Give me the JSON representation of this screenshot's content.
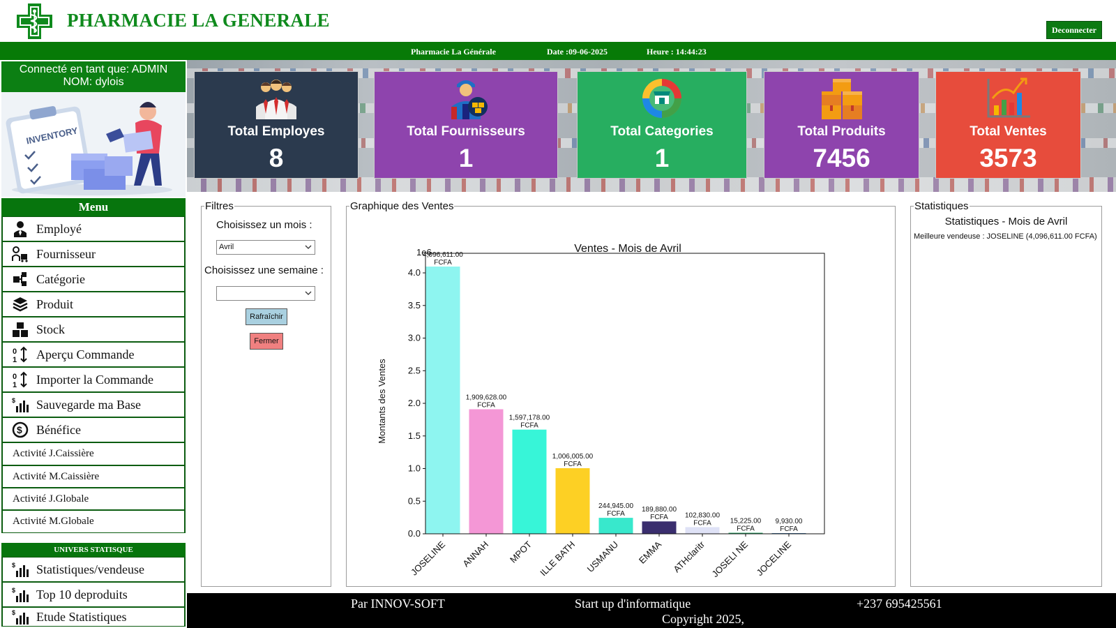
{
  "header": {
    "title": "PHARMACIE LA GENERALE",
    "logout_label": "Deconnecter"
  },
  "info_bar": {
    "pharmacy": "Pharmacie La Générale",
    "date": "Date :09-06-2025",
    "time": "Heure : 14:44:23"
  },
  "user": {
    "line1": "Connecté en tant que: ADMIN",
    "line2": "NOM:  dylois",
    "illustration_text": "INVENTORY"
  },
  "menu": {
    "title": "Menu",
    "items": [
      {
        "label": "Employé",
        "icon": "employee-icon"
      },
      {
        "label": "Fournisseur",
        "icon": "supplier-icon"
      },
      {
        "label": "Catégorie",
        "icon": "category-icon"
      },
      {
        "label": "Produit",
        "icon": "product-icon"
      },
      {
        "label": "Stock",
        "icon": "stock-icon"
      },
      {
        "label": "Aperçu Commande",
        "icon": "sort-icon"
      },
      {
        "label": "Importer la Commande",
        "icon": "sort-icon"
      },
      {
        "label": "Sauvegarde ma Base",
        "icon": "chart-dollar-icon"
      },
      {
        "label": "Bénéfice",
        "icon": "money-icon"
      }
    ],
    "activities": [
      "Activité J.Caissière",
      "Activité M.Caissière",
      "Activité J.Globale",
      "Activité M.Globale"
    ],
    "univers_title": "UNIVERS STATISQUE",
    "stat_items": [
      {
        "label": "Statistiques/vendeuse",
        "icon": "chart-dollar-icon"
      },
      {
        "label": "Top 10 deproduits",
        "icon": "chart-dollar-icon"
      },
      {
        "label": "Etude Statistiques",
        "icon": "chart-dollar-icon"
      }
    ]
  },
  "cards": [
    {
      "title": "Total Employes",
      "value": "8",
      "color": "#2b3a4e",
      "icon": "employees-icon"
    },
    {
      "title": "Total Fournisseurs",
      "value": "1",
      "color": "#8e44ad",
      "icon": "delivery-man-icon"
    },
    {
      "title": "Total Categories",
      "value": "1",
      "color": "#27ae60",
      "icon": "store-categories-icon"
    },
    {
      "title": "Total Produits",
      "value": "7456",
      "color": "#8e44ad",
      "icon": "boxes-icon"
    },
    {
      "title": "Total Ventes",
      "value": "3573",
      "color": "#e74c3c",
      "icon": "sales-chart-icon"
    }
  ],
  "filters": {
    "legend": "Filtres",
    "month_label": "Choisissez un mois :",
    "month_value": "Avril",
    "week_label": "Choisissez une semaine :",
    "week_value": "",
    "refresh_label": "Rafraîchir",
    "close_label": "Fermer",
    "refresh_color": "#a9d0e0",
    "close_color": "#f08080"
  },
  "graph": {
    "legend": "Graphique des Ventes"
  },
  "stats": {
    "legend": "Statistiques",
    "title": "Statistiques - Mois de Avril",
    "best": "Meilleure vendeuse : JOSELINE (4,096,611.00 FCFA)"
  },
  "chart_data": {
    "type": "bar",
    "title": "Ventes - Mois de Avril",
    "ylabel": "Montants des Ventes",
    "xlabel": "",
    "scale_label": "1e6",
    "ylim": [
      0,
      4.3
    ],
    "yticks": [
      "0.0",
      "0.5",
      "1.0",
      "1.5",
      "2.0",
      "2.5",
      "3.0",
      "3.5",
      "4.0"
    ],
    "categories": [
      "JOSELINE",
      "ANNAH",
      "MPOT",
      "ILLE BATH",
      "USMANU",
      "EMMA",
      "ATHclaritr",
      "JOSELI NE",
      "JOCELINE"
    ],
    "values": [
      4096611,
      1909628,
      1597178,
      1006005,
      244945,
      189880,
      102830,
      15225,
      9930
    ],
    "value_labels": [
      "4,096,611.00",
      "1,909,628.00",
      "1,597,178.00",
      "1,006,005.00",
      "244,945.00",
      "189,880.00",
      "102,830.00",
      "15,225.00",
      "9,930.00"
    ],
    "unit_label": "FCFA",
    "colors": [
      "#8ef5f0",
      "#f497d6",
      "#37f5d8",
      "#fdd024",
      "#38e8cc",
      "#3a2e6e",
      "#dfe2f6",
      "#1a9a5a",
      "#2d6aa8"
    ]
  },
  "footer": {
    "company": "Par INNOV-SOFT",
    "tagline": "Start up d'informatique",
    "phone": "+237 695425561",
    "copyright": "Copyright 2025,"
  }
}
